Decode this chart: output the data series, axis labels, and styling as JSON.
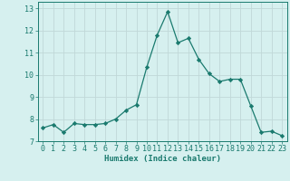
{
  "x": [
    0,
    1,
    2,
    3,
    4,
    5,
    6,
    7,
    8,
    9,
    10,
    11,
    12,
    13,
    14,
    15,
    16,
    17,
    18,
    19,
    20,
    21,
    22,
    23
  ],
  "y": [
    7.6,
    7.75,
    7.4,
    7.8,
    7.75,
    7.75,
    7.8,
    8.0,
    8.4,
    8.65,
    10.35,
    11.8,
    12.85,
    11.45,
    11.65,
    10.7,
    10.05,
    9.7,
    9.8,
    9.8,
    8.6,
    7.4,
    7.45,
    7.25
  ],
  "line_color": "#1a7a6e",
  "marker": "D",
  "marker_size": 2.2,
  "bg_color": "#d6f0ef",
  "grid_color": "#c0d8d8",
  "xlabel": "Humidex (Indice chaleur)",
  "ylabel": "",
  "xlim": [
    -0.5,
    23.5
  ],
  "ylim": [
    7.0,
    13.3
  ],
  "yticks": [
    7,
    8,
    9,
    10,
    11,
    12,
    13
  ],
  "xticks": [
    0,
    1,
    2,
    3,
    4,
    5,
    6,
    7,
    8,
    9,
    10,
    11,
    12,
    13,
    14,
    15,
    16,
    17,
    18,
    19,
    20,
    21,
    22,
    23
  ],
  "tick_color": "#1a7a6e",
  "label_fontsize": 6.5,
  "tick_fontsize": 6.0,
  "spine_color": "#1a7a6e",
  "linewidth": 0.9
}
